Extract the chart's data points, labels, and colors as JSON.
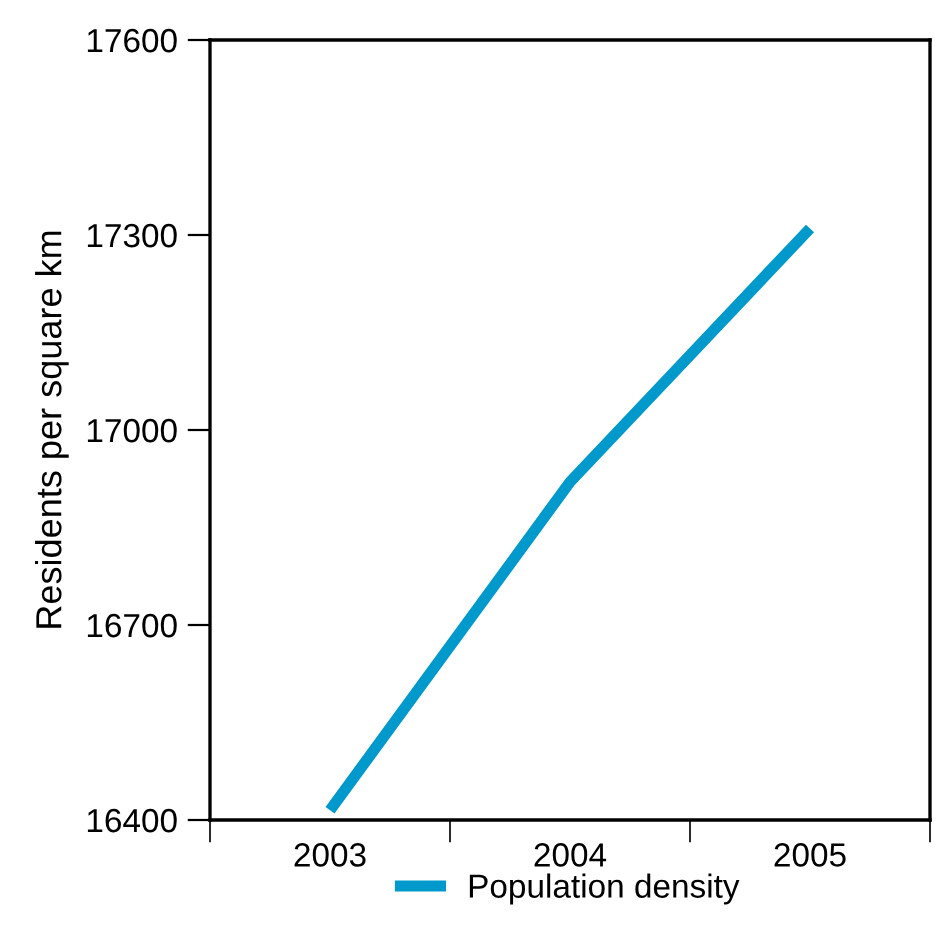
{
  "chart_data": {
    "type": "line",
    "ylabel": "Residents per square km",
    "categories": [
      "2003",
      "2004",
      "2005"
    ],
    "series": [
      {
        "name": "Population density",
        "color": "#0099cc",
        "values": [
          16415,
          16920,
          17310
        ]
      }
    ],
    "ylim": [
      16400,
      17600
    ],
    "yticks": [
      16400,
      16700,
      17000,
      17300,
      17600
    ],
    "grid": false,
    "legend": "bottom",
    "marker": "none",
    "line_style": "solid"
  }
}
